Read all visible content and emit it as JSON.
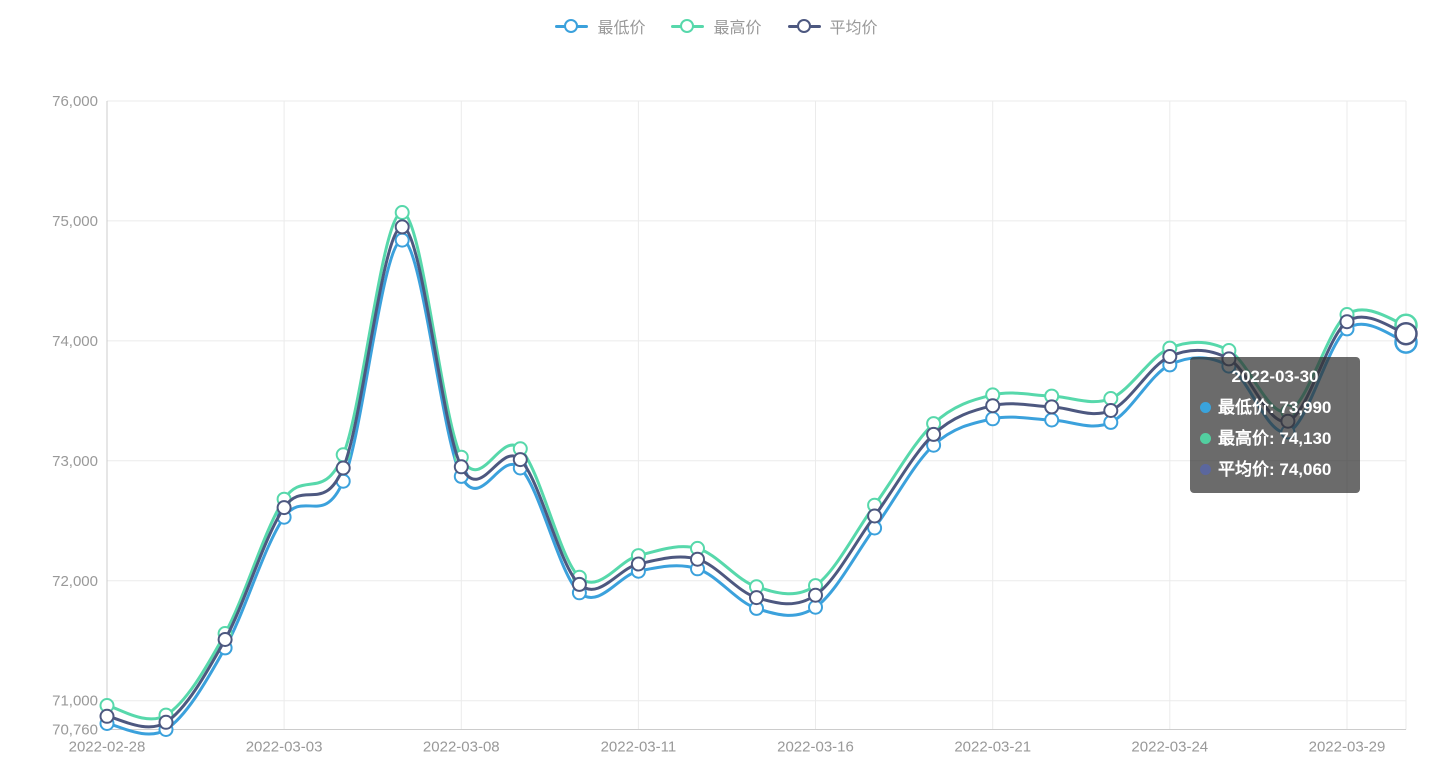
{
  "legend": {
    "items": [
      {
        "id": "min-price",
        "label": "最低价",
        "color": "#3ba1dc"
      },
      {
        "id": "max-price",
        "label": "最高价",
        "color": "#57d8ab"
      },
      {
        "id": "avg-price",
        "label": "平均价",
        "color": "#4d5880"
      }
    ]
  },
  "chart_data": {
    "type": "line",
    "smooth": true,
    "grid": true,
    "x": [
      "2022-02-28",
      "2022-03-01",
      "2022-03-02",
      "2022-03-03",
      "2022-03-04",
      "2022-03-07",
      "2022-03-08",
      "2022-03-09",
      "2022-03-10",
      "2022-03-11",
      "2022-03-14",
      "2022-03-15",
      "2022-03-16",
      "2022-03-17",
      "2022-03-18",
      "2022-03-21",
      "2022-03-22",
      "2022-03-23",
      "2022-03-24",
      "2022-03-25",
      "2022-03-28",
      "2022-03-29",
      "2022-03-30"
    ],
    "x_ticks": [
      {
        "index": 0,
        "label": "2022-02-28"
      },
      {
        "index": 3,
        "label": "2022-03-03"
      },
      {
        "index": 6,
        "label": "2022-03-08"
      },
      {
        "index": 9,
        "label": "2022-03-11"
      },
      {
        "index": 12,
        "label": "2022-03-16"
      },
      {
        "index": 15,
        "label": "2022-03-21"
      },
      {
        "index": 18,
        "label": "2022-03-24"
      },
      {
        "index": 21,
        "label": "2022-03-29"
      }
    ],
    "ylim": [
      70760,
      76000
    ],
    "y_ticks": [
      {
        "value": 70760,
        "label": "70,760"
      },
      {
        "value": 71000,
        "label": "71,000"
      },
      {
        "value": 72000,
        "label": "72,000"
      },
      {
        "value": 73000,
        "label": "73,000"
      },
      {
        "value": 74000,
        "label": "74,000"
      },
      {
        "value": 75000,
        "label": "75,000"
      },
      {
        "value": 76000,
        "label": "76,000"
      }
    ],
    "series": [
      {
        "id": "min-price",
        "name": "最低价",
        "color": "#3ba1dc",
        "values": [
          70810,
          70760,
          71440,
          72530,
          72830,
          74840,
          72870,
          72940,
          71900,
          72080,
          72100,
          71770,
          71780,
          72440,
          73130,
          73350,
          73340,
          73320,
          73800,
          73790,
          73240,
          74100,
          73990
        ]
      },
      {
        "id": "max-price",
        "name": "最高价",
        "color": "#57d8ab",
        "values": [
          70960,
          70880,
          71560,
          72680,
          73050,
          75070,
          73030,
          73100,
          72030,
          72210,
          72270,
          71950,
          71960,
          72630,
          73310,
          73550,
          73540,
          73520,
          73940,
          73920,
          73410,
          74220,
          74130
        ]
      },
      {
        "id": "avg-price",
        "name": "平均价",
        "color": "#4d5880",
        "values": [
          70870,
          70820,
          71510,
          72610,
          72940,
          74950,
          72950,
          73010,
          71970,
          72140,
          72180,
          71860,
          71880,
          72540,
          73220,
          73460,
          73450,
          73420,
          73870,
          73850,
          73330,
          74160,
          74060
        ]
      }
    ],
    "highlight_index": 22
  },
  "tooltip": {
    "title": "2022-03-30",
    "rows": [
      {
        "label": "最低价",
        "value": "73,990",
        "color": "#3aa3dc"
      },
      {
        "label": "最高价",
        "value": "74,130",
        "color": "#52cfa0"
      },
      {
        "label": "平均价",
        "value": "74,060",
        "color": "#5b679e"
      }
    ]
  }
}
